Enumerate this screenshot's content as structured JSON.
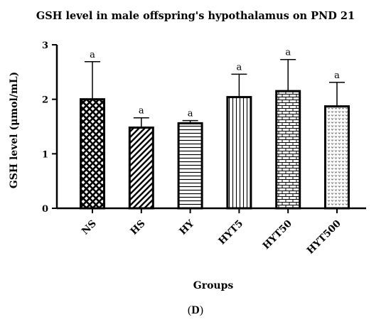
{
  "chart_data": {
    "type": "bar",
    "title": "GSH level in male offspring's hypothalamus on PND 21",
    "xlabel": "Groups",
    "ylabel": "GSH level (μmol/mL)",
    "ylim": [
      0,
      3
    ],
    "yticks": [
      "0",
      "1",
      "2",
      "3"
    ],
    "categories": [
      "NS",
      "HS",
      "HY",
      "HYT5",
      "HYT50",
      "HYT500"
    ],
    "values": [
      2.0,
      1.48,
      1.56,
      2.04,
      2.15,
      1.87
    ],
    "error_upper": [
      0.69,
      0.18,
      0.05,
      0.42,
      0.58,
      0.44
    ],
    "significance": [
      "a",
      "a",
      "a",
      "a",
      "a",
      "a"
    ],
    "patterns": [
      "crosshatch-diamond",
      "diagonal-stripes",
      "horizontal-stripes",
      "vertical-stripes",
      "brick",
      "dots"
    ],
    "grid": false,
    "legend": "none"
  },
  "panel_label": "D"
}
